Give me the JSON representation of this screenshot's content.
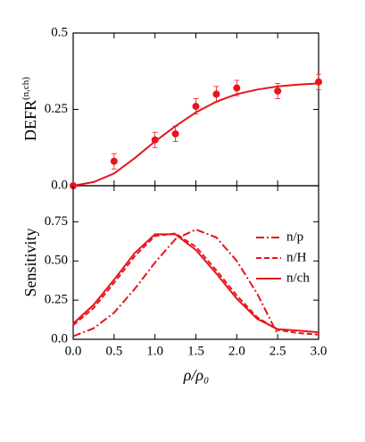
{
  "chart_data": [
    {
      "type": "scatter",
      "color": "#e8141c",
      "ylabel": "DEFR",
      "ylabel_superscript": "(n,ch)",
      "ylim": [
        0,
        0.5
      ],
      "yticks": [
        {
          "value": 0,
          "label": "0.0"
        },
        0.25,
        0.5
      ],
      "xlim": [
        0,
        3
      ],
      "points": {
        "x": [
          0,
          0.5,
          1.0,
          1.25,
          1.5,
          1.75,
          2.0,
          2.5,
          3.0
        ],
        "values": [
          0.0,
          0.08,
          0.15,
          0.17,
          0.26,
          0.3,
          0.32,
          0.31,
          0.34
        ],
        "errors": [
          0.0,
          0.025,
          0.025,
          0.025,
          0.025,
          0.025,
          0.025,
          0.025,
          0.025
        ]
      },
      "fit": {
        "x": [
          0,
          0.25,
          0.5,
          0.75,
          1.0,
          1.25,
          1.5,
          1.75,
          2.0,
          2.25,
          2.5,
          2.75,
          3.0
        ],
        "values": [
          0.0,
          0.012,
          0.04,
          0.09,
          0.145,
          0.195,
          0.24,
          0.275,
          0.3,
          0.315,
          0.325,
          0.331,
          0.335
        ]
      }
    },
    {
      "type": "line",
      "xlabel": "ρ/ρ₀",
      "ylabel": "Sensitivity",
      "xlim": [
        0,
        3
      ],
      "xticks": [
        {
          "value": 0,
          "label": "0.0"
        },
        0.5,
        {
          "value": 1,
          "label": "1.0"
        },
        1.5,
        {
          "value": 2,
          "label": "2.0"
        },
        2.5,
        {
          "value": 3,
          "label": "3.0"
        }
      ],
      "ylim": [
        0,
        0.98
      ],
      "yticks": [
        {
          "value": 0,
          "label": "0.0"
        },
        0.25,
        {
          "value": 0.5,
          "label": "0.50"
        },
        0.75
      ],
      "legend": "upper right",
      "x": [
        0,
        0.25,
        0.5,
        0.75,
        1.0,
        1.25,
        1.5,
        1.75,
        2.0,
        2.25,
        2.5,
        2.75,
        3.0
      ],
      "series": [
        {
          "name": "n/p",
          "color": "#e8141c",
          "dash": "dashdot",
          "values": [
            0.02,
            0.07,
            0.17,
            0.32,
            0.49,
            0.64,
            0.7,
            0.65,
            0.5,
            0.29,
            0.03,
            null,
            null
          ]
        },
        {
          "name": "n/H",
          "color": "#e8141c",
          "dash": "dashed",
          "values": [
            0.09,
            0.2,
            0.36,
            0.53,
            0.66,
            0.675,
            0.59,
            0.44,
            0.28,
            0.14,
            0.06,
            0.04,
            0.03
          ]
        },
        {
          "name": "n/ch",
          "color": "#e8141c",
          "dash": "solid",
          "values": [
            0.1,
            0.22,
            0.38,
            0.55,
            0.67,
            0.67,
            0.57,
            0.42,
            0.26,
            0.13,
            0.065,
            0.055,
            0.045
          ]
        }
      ]
    }
  ]
}
